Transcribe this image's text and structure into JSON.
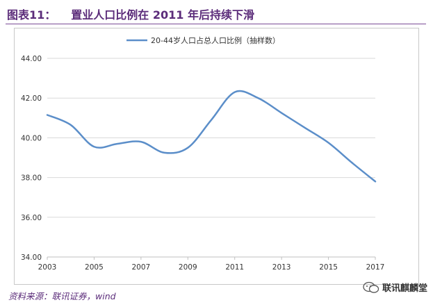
{
  "header": {
    "figure_label": "图表11：",
    "title": "置业人口比例在 2011 年后持续下滑"
  },
  "footer": {
    "source": "资料来源：联讯证券，wind"
  },
  "watermark": {
    "text": "联讯麒麟堂",
    "icon": "wechat-icon"
  },
  "colors": {
    "line": "#5b8ec9",
    "title": "#5b2c7a",
    "grid": "#d9d9d9"
  },
  "chart_data": {
    "type": "line",
    "title": "",
    "xlabel": "",
    "ylabel": "",
    "xlim": [
      2003,
      2017
    ],
    "ylim": [
      34.0,
      44.0
    ],
    "yticks": [
      "34.00",
      "36.00",
      "38.00",
      "40.00",
      "42.00",
      "44.00"
    ],
    "xticks": [
      "2003",
      "2005",
      "2007",
      "2009",
      "2011",
      "2013",
      "2015",
      "2017"
    ],
    "grid": true,
    "legend": "top-center",
    "smooth": true,
    "series": [
      {
        "name": "20-44岁人口占总人口比例（抽样数）",
        "x": [
          2003,
          2004,
          2005,
          2006,
          2007,
          2008,
          2009,
          2010,
          2011,
          2012,
          2013,
          2014,
          2015,
          2016,
          2017
        ],
        "y": [
          41.15,
          40.65,
          39.55,
          39.7,
          39.8,
          39.25,
          39.5,
          40.9,
          42.3,
          42.0,
          41.25,
          40.5,
          39.75,
          38.75,
          37.8
        ]
      }
    ]
  }
}
